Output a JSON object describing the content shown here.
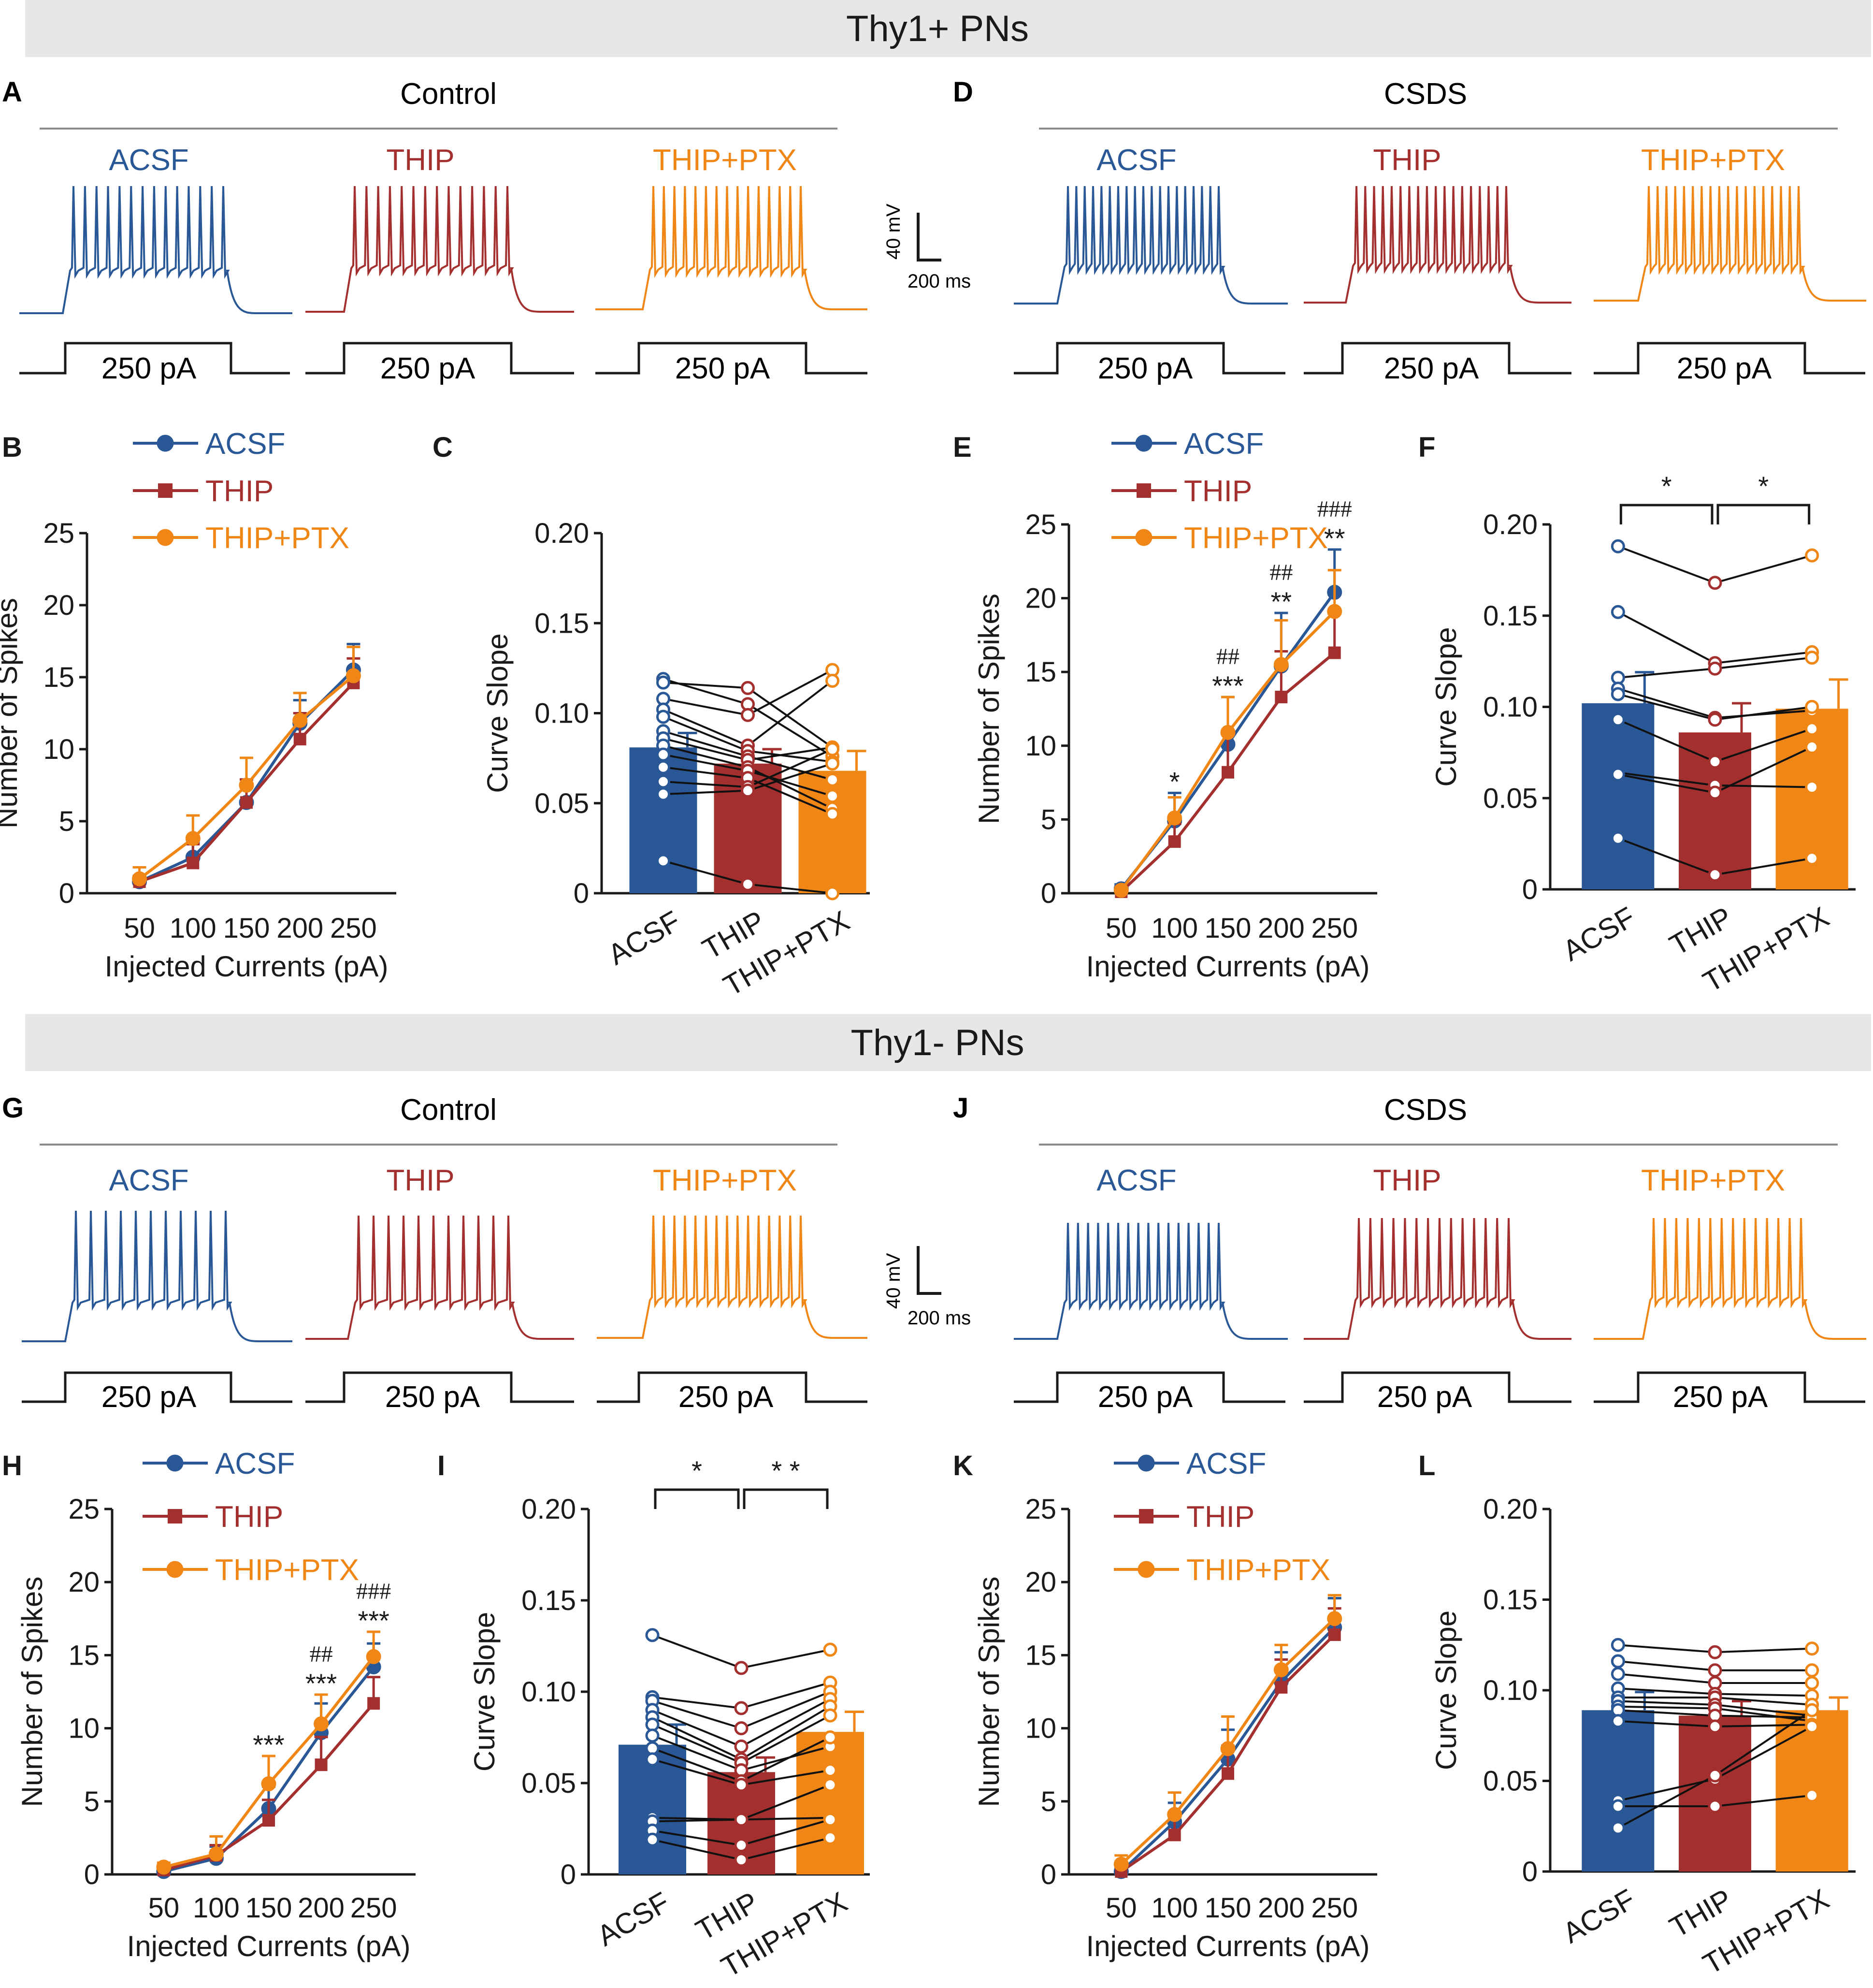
{
  "colors": {
    "acsf": "#2a5896",
    "thip": "#a3302e",
    "ptx": "#ef8616",
    "banner": "#e7e7e7",
    "text": "#1a1a1a",
    "rule": "#8c8c8c"
  },
  "sections": [
    {
      "title": "Thy1+ PNs"
    },
    {
      "title": "Thy1- PNs"
    }
  ],
  "trace_panels": [
    {
      "letter": "A",
      "title": "Control"
    },
    {
      "letter": "D",
      "title": "CSDS"
    },
    {
      "letter": "G",
      "title": "Control"
    },
    {
      "letter": "J",
      "title": "CSDS"
    }
  ],
  "trace_labels": [
    "ACSF",
    "THIP",
    "THIP+PTX"
  ],
  "step_label": "250 pA",
  "scale_bar": {
    "voltage": "40 mV",
    "time": "200 ms"
  },
  "chart_data": [
    {
      "id": "B",
      "type": "line",
      "letter": "B",
      "x": [
        50,
        100,
        150,
        200,
        250
      ],
      "ylim": [
        0,
        25
      ],
      "yticks": [
        "0",
        "5",
        "10",
        "15",
        "20",
        "25"
      ],
      "xticks": [
        "50",
        "100",
        "150",
        "200",
        "250"
      ],
      "xlabel": "Injected Currents (pA)",
      "ylabel": "Number of Spikes",
      "series": [
        {
          "name": "ACSF",
          "values": [
            0.8,
            2.5,
            6.3,
            11.8,
            15.5
          ],
          "errors": [
            0.4,
            1.0,
            1.2,
            1.6,
            1.8
          ]
        },
        {
          "name": "THIP",
          "values": [
            0.8,
            2.1,
            6.3,
            10.7,
            14.6
          ],
          "errors": [
            0.4,
            1.3,
            1.6,
            1.8,
            1.7
          ]
        },
        {
          "name": "THIP+PTX",
          "values": [
            1.0,
            3.8,
            7.5,
            12.0,
            15.1
          ],
          "errors": [
            0.8,
            1.6,
            1.9,
            1.9,
            2.0
          ]
        }
      ],
      "annotations": []
    },
    {
      "id": "C",
      "type": "bar",
      "letter": "C",
      "categories": [
        "ACSF",
        "THIP",
        "THIP+PTX"
      ],
      "ylim": [
        0,
        0.2
      ],
      "yticks": [
        "0",
        "0.05",
        "0.10",
        "0.15",
        "0.20"
      ],
      "ylabel": "Curve Slope",
      "values": [
        0.081,
        0.072,
        0.068
      ],
      "errors": [
        0.008,
        0.008,
        0.011
      ],
      "pairs": [
        [
          0.119,
          0.105,
          0.076
        ],
        [
          0.117,
          0.114,
          0.081
        ],
        [
          0.108,
          0.099,
          0.124
        ],
        [
          0.102,
          0.082,
          0.118
        ],
        [
          0.098,
          0.079,
          0.073
        ],
        [
          0.09,
          0.076,
          0.063
        ],
        [
          0.086,
          0.074,
          0.081
        ],
        [
          0.082,
          0.07,
          0.047
        ],
        [
          0.077,
          0.068,
          0.054
        ],
        [
          0.07,
          0.064,
          0.044
        ],
        [
          0.062,
          0.059,
          0.08
        ],
        [
          0.055,
          0.057,
          0.072
        ],
        [
          0.018,
          0.005,
          0.0
        ]
      ],
      "significance": []
    },
    {
      "id": "E",
      "type": "line",
      "letter": "E",
      "x": [
        50,
        100,
        150,
        200,
        250
      ],
      "ylim": [
        0,
        25
      ],
      "yticks": [
        "0",
        "5",
        "10",
        "15",
        "20",
        "25"
      ],
      "xticks": [
        "50",
        "100",
        "150",
        "200",
        "250"
      ],
      "xlabel": "Injected Currents (pA)",
      "ylabel": "Number of Spikes",
      "series": [
        {
          "name": "ACSF",
          "values": [
            0.3,
            4.9,
            10.1,
            15.4,
            20.4
          ],
          "errors": [
            0.3,
            1.9,
            3.2,
            3.6,
            2.9
          ]
        },
        {
          "name": "THIP",
          "values": [
            0.1,
            3.5,
            8.2,
            13.3,
            16.3
          ],
          "errors": [
            0.2,
            1.2,
            2.6,
            3.1,
            2.8
          ]
        },
        {
          "name": "THIP+PTX",
          "values": [
            0.2,
            5.1,
            10.9,
            15.5,
            19.1
          ],
          "errors": [
            0.2,
            1.4,
            2.4,
            3.0,
            2.8
          ]
        }
      ],
      "annotations": [
        {
          "x": 100,
          "lines": [
            "*"
          ]
        },
        {
          "x": 150,
          "lines": [
            "##",
            "***"
          ]
        },
        {
          "x": 200,
          "lines": [
            "##",
            "**"
          ]
        },
        {
          "x": 250,
          "lines": [
            "###",
            "**"
          ]
        }
      ]
    },
    {
      "id": "F",
      "type": "bar",
      "letter": "F",
      "categories": [
        "ACSF",
        "THIP",
        "THIP+PTX"
      ],
      "ylim": [
        0,
        0.2
      ],
      "yticks": [
        "0",
        "0.05",
        "0.10",
        "0.15",
        "0.20"
      ],
      "ylabel": "Curve Slope",
      "values": [
        0.102,
        0.086,
        0.099
      ],
      "errors": [
        0.017,
        0.016,
        0.016
      ],
      "pairs": [
        [
          0.188,
          0.168,
          0.183
        ],
        [
          0.152,
          0.124,
          0.13
        ],
        [
          0.116,
          0.121,
          0.127
        ],
        [
          0.11,
          0.094,
          0.098
        ],
        [
          0.107,
          0.093,
          0.1
        ],
        [
          0.093,
          0.07,
          0.088
        ],
        [
          0.064,
          0.057,
          0.056
        ],
        [
          0.063,
          0.053,
          0.078
        ],
        [
          0.028,
          0.008,
          0.017
        ]
      ],
      "significance": [
        {
          "from": 0,
          "to": 1,
          "label": "*"
        },
        {
          "from": 1,
          "to": 2,
          "label": "*"
        }
      ]
    },
    {
      "id": "H",
      "type": "line",
      "letter": "H",
      "x": [
        50,
        100,
        150,
        200,
        250
      ],
      "ylim": [
        0,
        25
      ],
      "yticks": [
        "0",
        "5",
        "10",
        "15",
        "20",
        "25"
      ],
      "xticks": [
        "50",
        "100",
        "150",
        "200",
        "250"
      ],
      "xlabel": "Injected Currents (pA)",
      "ylabel": "Number of Spikes",
      "series": [
        {
          "name": "ACSF",
          "values": [
            0.2,
            1.1,
            4.5,
            9.7,
            14.2
          ],
          "errors": [
            0.2,
            0.8,
            1.5,
            2.0,
            1.6
          ]
        },
        {
          "name": "THIP",
          "values": [
            0.3,
            1.3,
            3.7,
            7.5,
            11.7
          ],
          "errors": [
            0.2,
            0.7,
            1.4,
            1.9,
            1.8
          ]
        },
        {
          "name": "THIP+PTX",
          "values": [
            0.5,
            1.4,
            6.2,
            10.3,
            14.9
          ],
          "errors": [
            0.3,
            1.2,
            1.9,
            2.0,
            1.7
          ]
        }
      ],
      "annotations": [
        {
          "x": 150,
          "lines": [
            "***"
          ]
        },
        {
          "x": 200,
          "lines": [
            "##",
            "***"
          ]
        },
        {
          "x": 250,
          "lines": [
            "###",
            "***"
          ]
        }
      ]
    },
    {
      "id": "I",
      "type": "bar",
      "letter": "I",
      "categories": [
        "ACSF",
        "THIP",
        "THIP+PTX"
      ],
      "ylim": [
        0,
        0.2
      ],
      "yticks": [
        "0",
        "0.05",
        "0.10",
        "0.15",
        "0.20"
      ],
      "ylabel": "Curve Slope",
      "values": [
        0.071,
        0.056,
        0.078
      ],
      "errors": [
        0.011,
        0.008,
        0.011
      ],
      "pairs": [
        [
          0.131,
          0.113,
          0.123
        ],
        [
          0.097,
          0.091,
          0.105
        ],
        [
          0.095,
          0.08,
          0.1
        ],
        [
          0.09,
          0.07,
          0.096
        ],
        [
          0.086,
          0.063,
          0.092
        ],
        [
          0.082,
          0.061,
          0.087
        ],
        [
          0.076,
          0.057,
          0.07
        ],
        [
          0.069,
          0.051,
          0.075
        ],
        [
          0.063,
          0.049,
          0.057
        ],
        [
          0.031,
          0.03,
          0.049
        ],
        [
          0.029,
          0.03,
          0.031
        ],
        [
          0.024,
          0.016,
          0.03
        ],
        [
          0.019,
          0.008,
          0.02
        ]
      ],
      "significance": [
        {
          "from": 0,
          "to": 1,
          "label": "*"
        },
        {
          "from": 1,
          "to": 2,
          "label": "* *"
        }
      ]
    },
    {
      "id": "K",
      "type": "line",
      "letter": "K",
      "x": [
        50,
        100,
        150,
        200,
        250
      ],
      "ylim": [
        0,
        25
      ],
      "yticks": [
        "0",
        "5",
        "10",
        "15",
        "20",
        "25"
      ],
      "xticks": [
        "50",
        "100",
        "150",
        "200",
        "250"
      ],
      "xlabel": "Injected Currents (pA)",
      "ylabel": "Number of Spikes",
      "series": [
        {
          "name": "ACSF",
          "values": [
            0.2,
            3.6,
            7.9,
            13.2,
            16.9
          ],
          "errors": [
            0.3,
            1.3,
            2.0,
            2.0,
            2.0
          ]
        },
        {
          "name": "THIP",
          "values": [
            0.2,
            2.7,
            6.9,
            12.8,
            16.4
          ],
          "errors": [
            0.3,
            1.3,
            1.9,
            1.9,
            1.8
          ]
        },
        {
          "name": "THIP+PTX",
          "values": [
            0.7,
            4.1,
            8.6,
            14.0,
            17.5
          ],
          "errors": [
            0.6,
            1.5,
            2.2,
            1.7,
            1.6
          ]
        }
      ],
      "annotations": []
    },
    {
      "id": "L",
      "type": "bar",
      "letter": "L",
      "categories": [
        "ACSF",
        "THIP",
        "THIP+PTX"
      ],
      "ylim": [
        0,
        0.2
      ],
      "yticks": [
        "0",
        "0.05",
        "0.10",
        "0.15",
        "0.20"
      ],
      "ylabel": "Curve Slope",
      "values": [
        0.089,
        0.086,
        0.089
      ],
      "errors": [
        0.01,
        0.008,
        0.007
      ],
      "pairs": [
        [
          0.125,
          0.121,
          0.123
        ],
        [
          0.116,
          0.111,
          0.111
        ],
        [
          0.109,
          0.104,
          0.104
        ],
        [
          0.101,
          0.098,
          0.097
        ],
        [
          0.096,
          0.096,
          0.092
        ],
        [
          0.094,
          0.092,
          0.086
        ],
        [
          0.091,
          0.09,
          0.083
        ],
        [
          0.089,
          0.086,
          0.085
        ],
        [
          0.083,
          0.08,
          0.081
        ],
        [
          0.039,
          0.051,
          0.08
        ],
        [
          0.036,
          0.036,
          0.042
        ],
        [
          0.024,
          0.053,
          0.089
        ]
      ],
      "significance": []
    }
  ]
}
